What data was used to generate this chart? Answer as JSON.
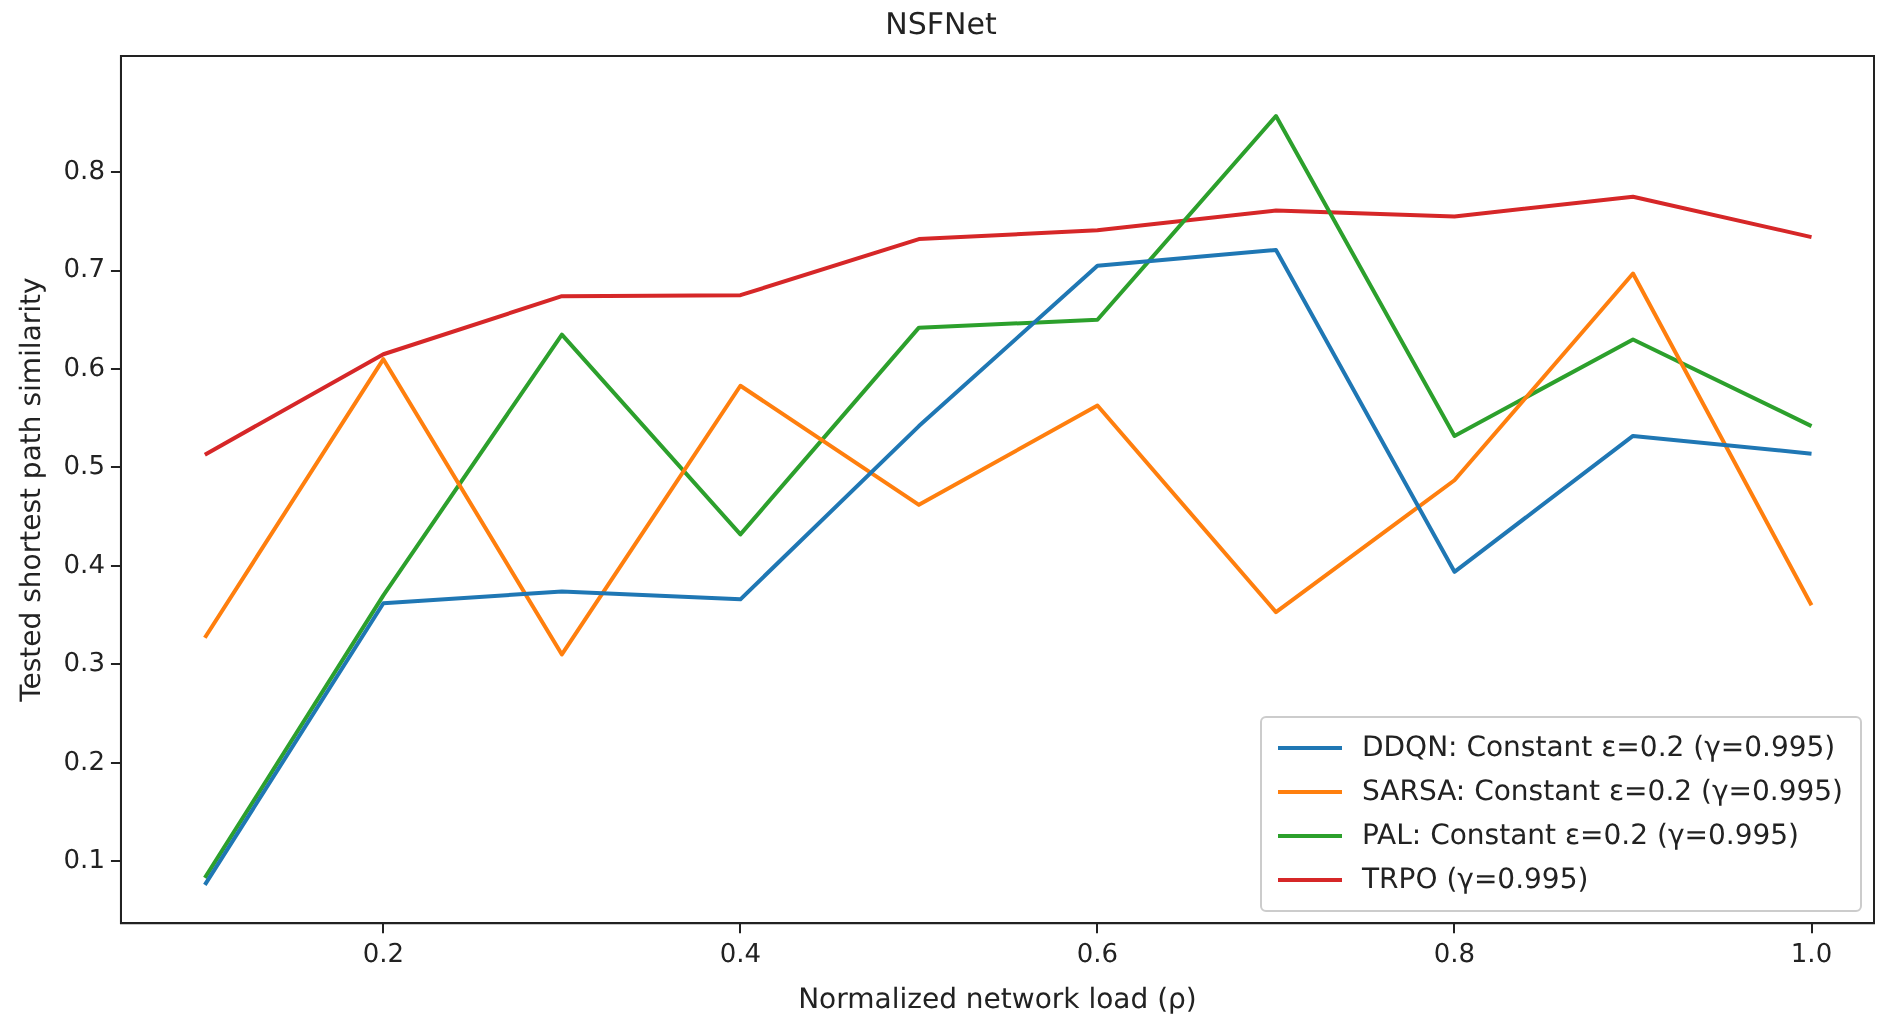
{
  "chart_data": {
    "type": "line",
    "title": "NSFNet",
    "xlabel": "Normalized network load (ρ)",
    "ylabel": "Tested shortest path similarity",
    "x": [
      0.1,
      0.2,
      0.3,
      0.4,
      0.5,
      0.6,
      0.7,
      0.8,
      0.9,
      1.0
    ],
    "series": [
      {
        "name": "DDQN: Constant ε=0.2 (γ=0.995)",
        "color": "#1f77b4",
        "values": [
          0.076,
          0.362,
          0.374,
          0.366,
          0.542,
          0.705,
          0.721,
          0.394,
          0.532,
          0.514
        ]
      },
      {
        "name": "SARSA: Constant ε=0.2 (γ=0.995)",
        "color": "#ff7f0e",
        "values": [
          0.327,
          0.61,
          0.31,
          0.583,
          0.462,
          0.563,
          0.353,
          0.487,
          0.697,
          0.36
        ]
      },
      {
        "name": "PAL: Constant ε=0.2 (γ=0.995)",
        "color": "#2ca02c",
        "values": [
          0.083,
          0.37,
          0.635,
          0.432,
          0.642,
          0.65,
          0.857,
          0.532,
          0.63,
          0.542
        ]
      },
      {
        "name": "TRPO (γ=0.995)",
        "color": "#d62728",
        "values": [
          0.513,
          0.615,
          0.674,
          0.675,
          0.732,
          0.741,
          0.761,
          0.755,
          0.775,
          0.734
        ]
      }
    ],
    "xlim": [
      0.053,
      1.035
    ],
    "ylim": [
      0.037,
      0.918
    ],
    "xticks": [
      {
        "value": 0.2,
        "label": "0.2"
      },
      {
        "value": 0.4,
        "label": "0.4"
      },
      {
        "value": 0.6,
        "label": "0.6"
      },
      {
        "value": 0.8,
        "label": "0.8"
      },
      {
        "value": 1.0,
        "label": "1.0"
      }
    ],
    "yticks": [
      0.1,
      0.2,
      0.3,
      0.4,
      0.5,
      0.6,
      0.7,
      0.8
    ],
    "grid": false,
    "legend": "bottom right",
    "marker": "none",
    "line_style": "solid"
  }
}
